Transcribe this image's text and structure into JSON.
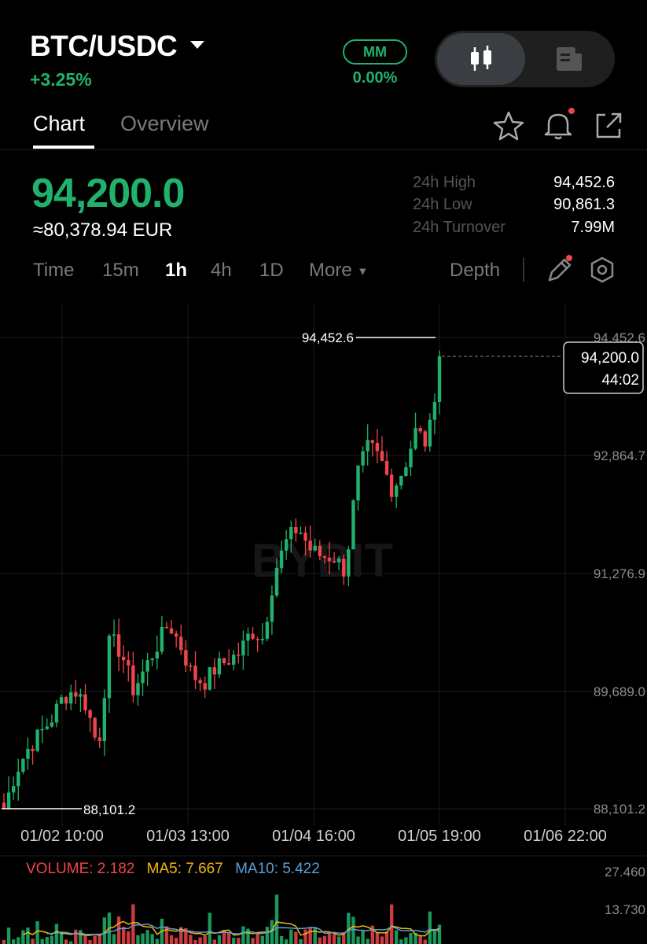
{
  "header": {
    "pair": "BTC/USDC",
    "change": "+3.25%",
    "mm_badge": "MM",
    "mm_value": "0.00%",
    "view_toggle": [
      "candlestick-icon",
      "document-icon"
    ]
  },
  "tabs": {
    "chart": "Chart",
    "overview": "Overview",
    "active": "Chart"
  },
  "header_icons": [
    "star-icon",
    "bell-icon",
    "share-icon"
  ],
  "price": {
    "last": "94,200.0",
    "fiat": "≈80,378.94 EUR",
    "stats": [
      {
        "label": "24h High",
        "value": "94,452.6"
      },
      {
        "label": "24h Low",
        "value": "90,861.3"
      },
      {
        "label": "24h Turnover",
        "value": "7.99M"
      }
    ]
  },
  "timeframes": {
    "items": [
      "Time",
      "15m",
      "1h",
      "4h",
      "1D",
      "More"
    ],
    "active": "1h",
    "depth": "Depth"
  },
  "chart": {
    "watermark": "BYBIT",
    "y_ticks": [
      "94,452.6",
      "92,864.7",
      "91,276.9",
      "89,689.0",
      "88,101.2"
    ],
    "x_ticks": [
      "01/02 10:00",
      "01/03 13:00",
      "01/04 16:00",
      "01/05 19:00",
      "01/06 22:00"
    ],
    "high_marker": "94,452.6",
    "low_marker": "88,101.2",
    "current_price": "94,200.0",
    "countdown": "44:02",
    "up_color": "#20b26c",
    "down_color": "#ef454a"
  },
  "volume": {
    "volume": "VOLUME: 2.182",
    "ma5": "MA5: 7.667",
    "ma10": "MA10: 5.422",
    "y_ticks": [
      "27.460",
      "13.730"
    ],
    "ma5_color": "#f0b90b",
    "ma10_color": "#5e9fd6"
  },
  "chart_data": {
    "type": "candlestick",
    "interval": "1h",
    "ylim": [
      88101.2,
      94452.6
    ],
    "x_ticks": [
      "01/02 10:00",
      "01/03 13:00",
      "01/04 16:00",
      "01/05 19:00",
      "01/06 22:00"
    ],
    "high": 94452.6,
    "low": 88101.2,
    "last": 94200.0,
    "trend_closes": [
      88101,
      88600,
      88900,
      89100,
      89300,
      89600,
      89700,
      89500,
      88900,
      90400,
      90200,
      89700,
      90000,
      90300,
      90600,
      90300,
      89900,
      89800,
      90000,
      90100,
      90200,
      90500,
      90400,
      91300,
      91700,
      91900,
      91600,
      91500,
      91500,
      91300,
      92600,
      93000,
      92800,
      92400,
      92700,
      93200,
      93000,
      94200
    ]
  }
}
